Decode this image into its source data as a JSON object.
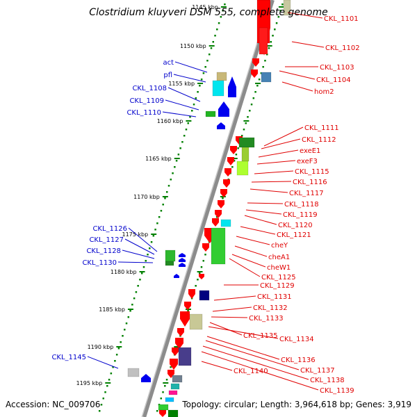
{
  "title": "Clostridium kluyveri DSM 555, complete genome",
  "footer": {
    "accession": "Accession: NC_009706",
    "stats": "Topology: circular; Length: 3,964,618 bp; Genes: 3,919"
  },
  "scale_labels": [
    "1145 kbp",
    "1150 kbp",
    "1155 kbp",
    "1160 kbp",
    "1165 kbp",
    "1170 kbp",
    "1175 kbp",
    "1180 kbp",
    "1185 kbp",
    "1190 kbp",
    "1195 kbp"
  ],
  "reverse_strand_labels": [
    "CKL_1101",
    "CKL_1102",
    "CKL_1103",
    "CKL_1104",
    "hom2",
    "CKL_1111",
    "CKL_1112",
    "exeE1",
    "exeF3",
    "CKL_1115",
    "CKL_1116",
    "CKL_1117",
    "CKL_1118",
    "CKL_1119",
    "CKL_1120",
    "CKL_1121",
    "cheY",
    "cheA1",
    "cheW1",
    "CKL_1125",
    "CKL_1129",
    "CKL_1131",
    "CKL_1132",
    "CKL_1133",
    "CKL_1135",
    "CKL_1134",
    "CKL_1136",
    "CKL_1137",
    "CKL_1138",
    "CKL_1139",
    "CKL_1140"
  ],
  "forward_strand_labels": [
    "act",
    "pfl",
    "CKL_1108",
    "CKL_1109",
    "CKL_1110",
    "CKL_1126",
    "CKL_1127",
    "CKL_1128",
    "CKL_1130",
    "CKL_1145"
  ],
  "colors": {
    "reverse_gene": "#ff0000",
    "forward_gene": "#0000ee",
    "reverse_label": "#e00000",
    "forward_label": "#0000cc",
    "backbone": "#8c8c8c",
    "scale_dots": "#008000"
  }
}
